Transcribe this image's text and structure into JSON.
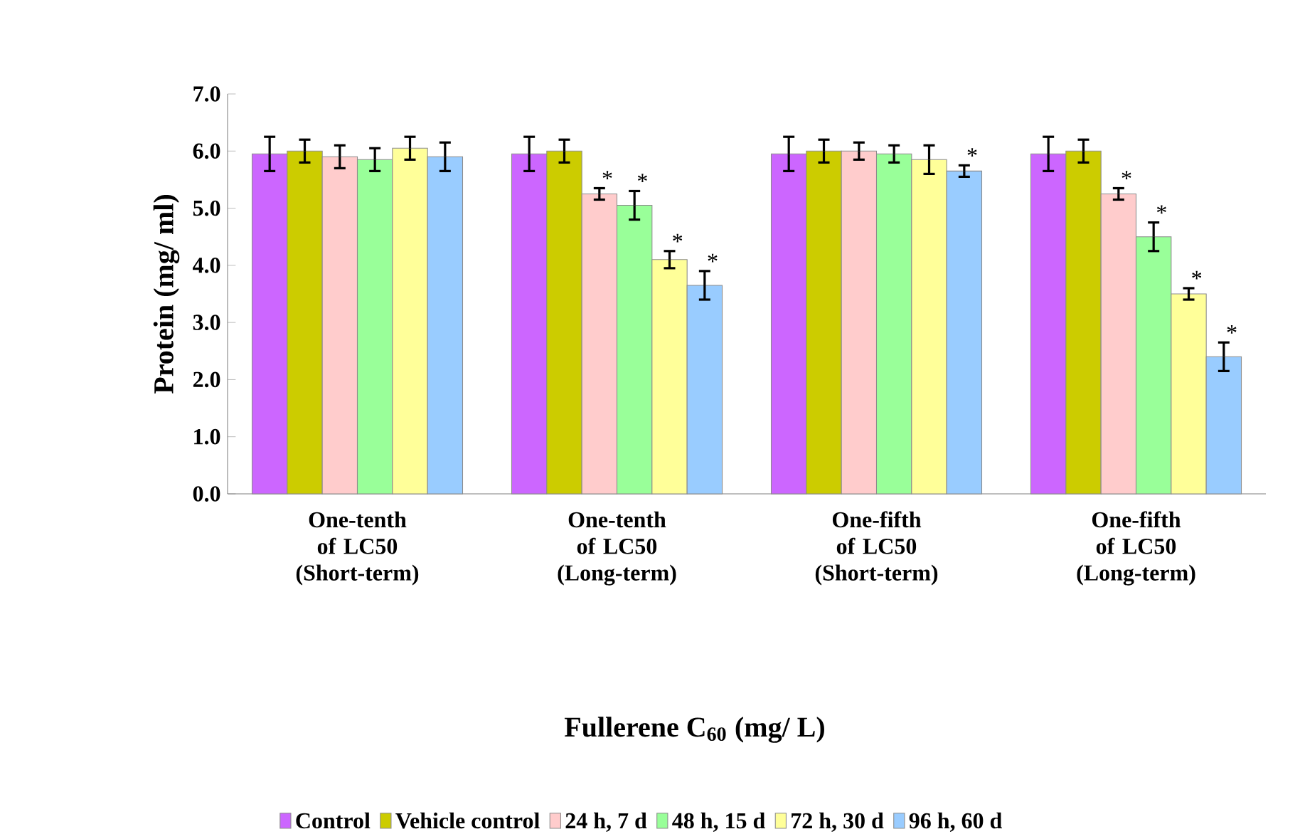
{
  "chart_data": {
    "type": "bar",
    "xlabel": "Fullerene C$_{60}$ (mg/ L)",
    "ylabel": "Protein (mg/ ml)",
    "categories": [
      "One-tenth of LC50 (Short-term)",
      "One-tenth of LC50 (Long-term)",
      "One-fifth of LC50 (Short-term)",
      "One-fifth of LC50 (Long-term)"
    ],
    "series": [
      {
        "name": "Control",
        "color": "#cc66ff",
        "values": [
          5.95,
          5.95,
          5.95,
          5.95
        ],
        "errors": [
          0.3,
          0.3,
          0.3,
          0.3
        ]
      },
      {
        "name": "Vehicle control",
        "color": "#cccc00",
        "values": [
          6.0,
          6.0,
          6.0,
          6.0
        ],
        "errors": [
          0.2,
          0.2,
          0.2,
          0.2
        ]
      },
      {
        "name": "24 h, 7 d",
        "color": "#ffcccc",
        "values": [
          5.9,
          5.25,
          6.0,
          5.25
        ],
        "errors": [
          0.2,
          0.1,
          0.15,
          0.1
        ],
        "value_labels": [
          null,
          "*",
          null,
          "*"
        ]
      },
      {
        "name": "48 h, 15 d",
        "color": "#99ff99",
        "values": [
          5.85,
          5.05,
          5.95,
          4.5
        ],
        "errors": [
          0.2,
          0.25,
          0.15,
          0.25
        ],
        "value_labels": [
          null,
          "*",
          null,
          "*"
        ]
      },
      {
        "name": "72 h, 30 d",
        "color": "#ffff99",
        "values": [
          6.05,
          4.1,
          5.85,
          3.5
        ],
        "errors": [
          0.2,
          0.15,
          0.25,
          0.1
        ],
        "value_labels": [
          null,
          "*",
          null,
          "*"
        ]
      },
      {
        "name": "96 h, 60 d",
        "color": "#99ccff",
        "values": [
          5.9,
          3.65,
          5.65,
          2.4
        ],
        "errors": [
          0.25,
          0.25,
          0.1,
          0.25
        ],
        "value_labels": [
          null,
          "*",
          "*",
          "*"
        ]
      }
    ],
    "ylim": [
      0,
      7
    ],
    "yticks": [
      {
        "value": 0,
        "label": "0.0"
      },
      {
        "value": 1,
        "label": "1.0"
      },
      {
        "value": 2,
        "label": "2.0"
      },
      {
        "value": 3,
        "label": "3.0"
      },
      {
        "value": 4,
        "label": "4.0"
      },
      {
        "value": 5,
        "label": "5.0"
      },
      {
        "value": 6,
        "label": "6.0"
      },
      {
        "value": 7,
        "label": "7.0"
      }
    ],
    "grid": false,
    "legend": "bottom"
  }
}
